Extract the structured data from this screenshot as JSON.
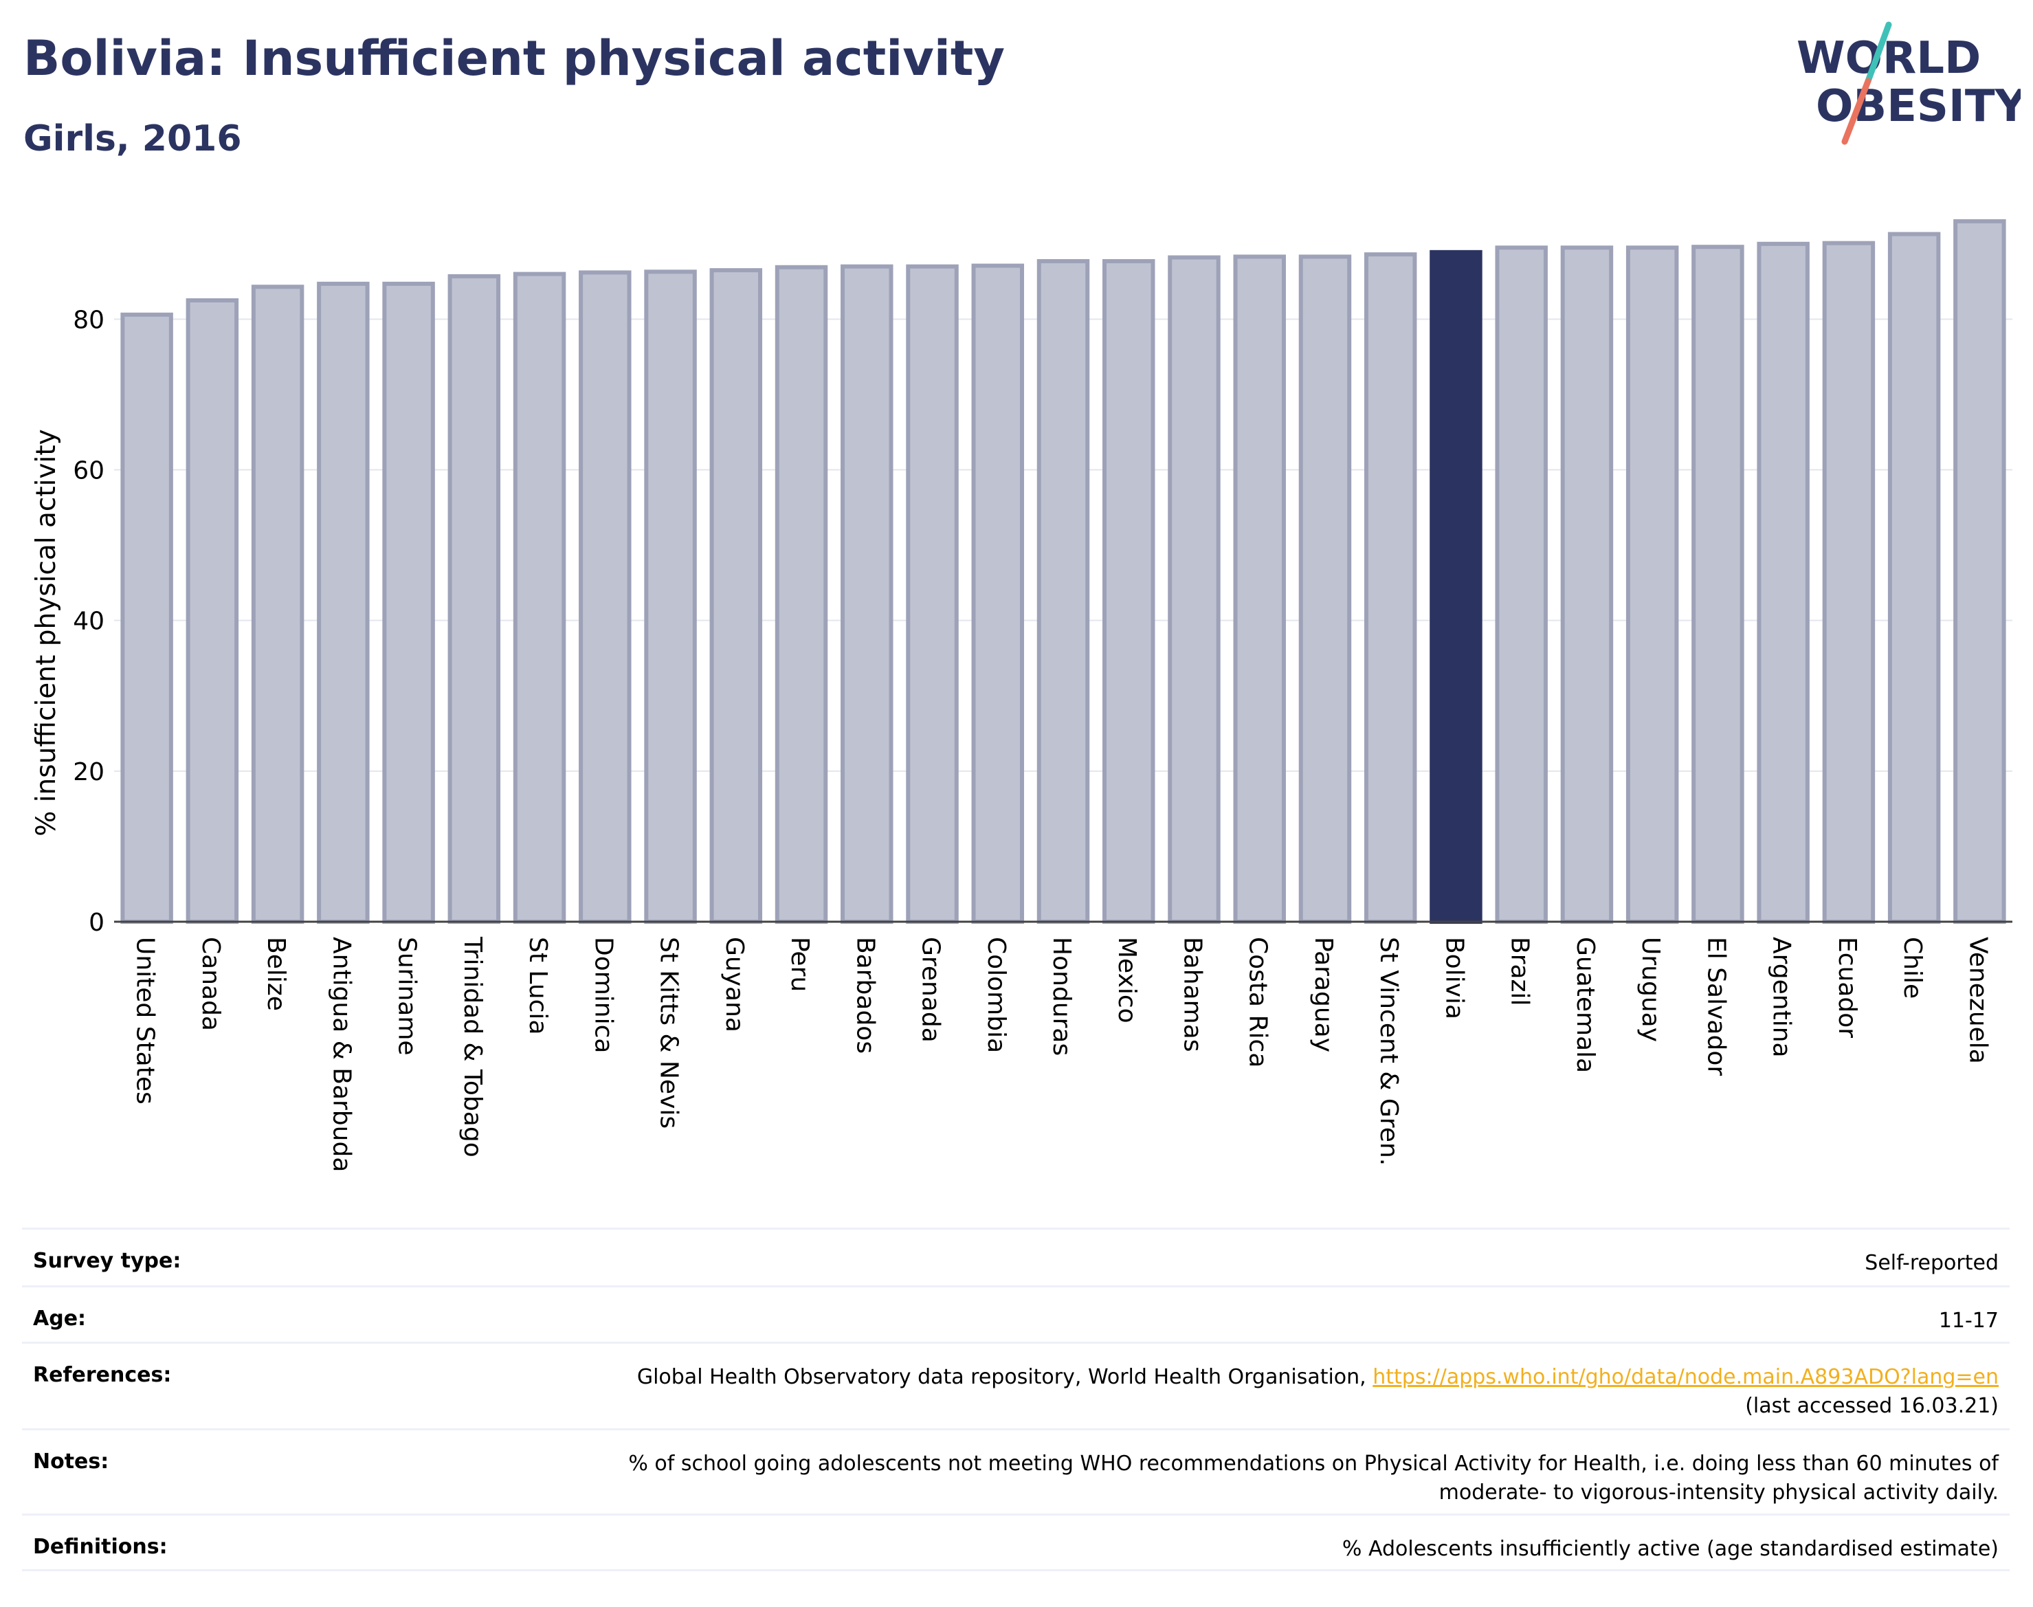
{
  "header": {
    "title": "Bolivia: Insufficient physical activity",
    "subtitle": "Girls, 2016"
  },
  "logo": {
    "line1": "WORLD",
    "line2": "OBESITY"
  },
  "colors": {
    "highlight": "#2b3461",
    "bar_fill": "#bfc2d0",
    "bar_stroke": "#9ea2b8",
    "title": "#2b3461",
    "logo_teal": "#3fc1b8",
    "logo_coral": "#e9735f",
    "link": "#f2b01e"
  },
  "chart_data": {
    "type": "bar",
    "title": "Bolivia: Insufficient physical activity",
    "subtitle": "Girls, 2016",
    "xlabel": "",
    "ylabel": "% insufficient physical activity",
    "ylim": [
      0,
      95
    ],
    "yticks": [
      0,
      20,
      40,
      60,
      80
    ],
    "grid": true,
    "highlight": "Bolivia",
    "categories": [
      "United States",
      "Canada",
      "Belize",
      "Antigua & Barbuda",
      "Suriname",
      "Trinidad & Tobago",
      "St Lucia",
      "Dominica",
      "St Kitts & Nevis",
      "Guyana",
      "Peru",
      "Barbados",
      "Grenada",
      "Colombia",
      "Honduras",
      "Mexico",
      "Bahamas",
      "Costa Rica",
      "Paraguay",
      "St Vincent & Gren.",
      "Bolivia",
      "Brazil",
      "Guatemala",
      "Uruguay",
      "El Salvador",
      "Argentina",
      "Ecuador",
      "Chile",
      "Venezuela"
    ],
    "values": [
      80.6,
      82.5,
      84.3,
      84.7,
      84.7,
      85.7,
      86.0,
      86.2,
      86.3,
      86.5,
      86.9,
      87.0,
      87.0,
      87.1,
      87.7,
      87.7,
      88.2,
      88.3,
      88.3,
      88.6,
      88.9,
      89.5,
      89.5,
      89.5,
      89.6,
      90.0,
      90.1,
      91.3,
      93.0
    ]
  },
  "info_table": [
    {
      "label": "Survey type:",
      "value": "Self-reported"
    },
    {
      "label": "Age:",
      "value": "11-17"
    },
    {
      "label": "References:",
      "value": "Global Health Observatory data repository, World Health Organisation,",
      "link": "https://apps.who.int/gho/data/node.main.A893ADO?lang=en",
      "value2": "(last accessed 16.03.21)"
    },
    {
      "label": "Notes:",
      "value": "% of school going adolescents not meeting WHO recommendations on Physical Activity for Health, i.e. doing less than 60 minutes of moderate- to vigorous-intensity physical activity daily."
    },
    {
      "label": "Definitions:",
      "value": "% Adolescents insufficiently active (age standardised estimate)"
    }
  ]
}
